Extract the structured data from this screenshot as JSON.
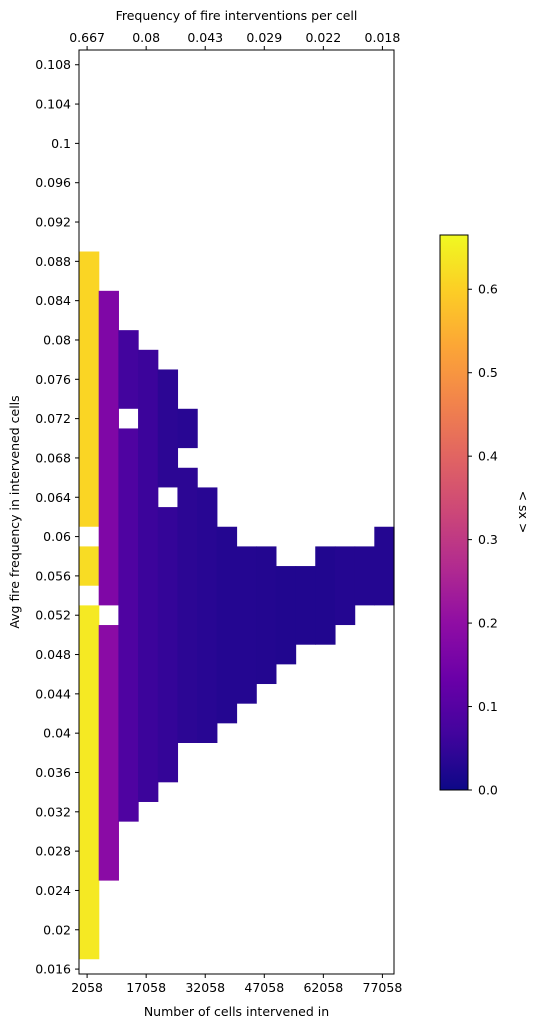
{
  "chart_data": {
    "type": "heatmap",
    "title": "",
    "xlabel": "Number of cells intervened in",
    "ylabel": "Avg fire frequency in intervened cells",
    "top_xlabel": "Frequency of fire interventions per cell",
    "x_ticks": [
      "2058",
      "17058",
      "32058",
      "47058",
      "62058",
      "77058"
    ],
    "x_tick_values": [
      2058,
      17058,
      32058,
      47058,
      62058,
      77058
    ],
    "top_ticks": [
      "0.667",
      "0.08",
      "0.043",
      "0.029",
      "0.022",
      "0.018"
    ],
    "y_ticks": [
      "0.016",
      "0.02",
      "0.024",
      "0.028",
      "0.032",
      "0.036",
      "0.04",
      "0.044",
      "0.048",
      "0.052",
      "0.056",
      "0.06",
      "0.064",
      "0.068",
      "0.072",
      "0.076",
      "0.08",
      "0.084",
      "0.088",
      "0.092",
      "0.096",
      "0.1",
      "0.104",
      "0.108"
    ],
    "xlim": [
      0,
      80000
    ],
    "ylim": [
      0.0155,
      0.1095
    ],
    "x_bins": [
      0,
      5000,
      10000,
      15000,
      20000,
      25000,
      30000,
      35000,
      40000,
      45000,
      50000,
      55000,
      60000,
      65000,
      70000,
      75000,
      80000
    ],
    "y_bins": [
      0.017,
      0.019,
      0.021,
      0.023,
      0.025,
      0.027,
      0.029,
      0.031,
      0.033,
      0.035,
      0.037,
      0.039,
      0.041,
      0.043,
      0.045,
      0.047,
      0.049,
      0.051,
      0.053,
      0.055,
      0.057,
      0.059,
      0.061,
      0.063,
      0.065,
      0.067,
      0.069,
      0.071,
      0.073,
      0.075,
      0.077,
      0.079,
      0.081,
      0.083,
      0.085,
      0.087,
      0.089
    ],
    "cells": [
      {
        "col": 0,
        "y0": 0.017,
        "y1": 0.053,
        "v": 0.64
      },
      {
        "col": 0,
        "y0": 0.055,
        "y1": 0.059,
        "v": 0.62
      },
      {
        "col": 0,
        "y0": 0.061,
        "y1": 0.089,
        "v": 0.61
      },
      {
        "col": 1,
        "y0": 0.025,
        "y1": 0.051,
        "v": 0.19
      },
      {
        "col": 1,
        "y0": 0.053,
        "y1": 0.085,
        "v": 0.17
      },
      {
        "col": 2,
        "y0": 0.031,
        "y1": 0.071,
        "v": 0.09
      },
      {
        "col": 2,
        "y0": 0.073,
        "y1": 0.081,
        "v": 0.07
      },
      {
        "col": 3,
        "y0": 0.033,
        "y1": 0.079,
        "v": 0.06
      },
      {
        "col": 4,
        "y0": 0.035,
        "y1": 0.063,
        "v": 0.05
      },
      {
        "col": 4,
        "y0": 0.065,
        "y1": 0.077,
        "v": 0.04
      },
      {
        "col": 5,
        "y0": 0.039,
        "y1": 0.067,
        "v": 0.04
      },
      {
        "col": 5,
        "y0": 0.069,
        "y1": 0.073,
        "v": 0.035
      },
      {
        "col": 6,
        "y0": 0.039,
        "y1": 0.065,
        "v": 0.035
      },
      {
        "col": 7,
        "y0": 0.041,
        "y1": 0.061,
        "v": 0.03
      },
      {
        "col": 8,
        "y0": 0.043,
        "y1": 0.059,
        "v": 0.03
      },
      {
        "col": 9,
        "y0": 0.045,
        "y1": 0.059,
        "v": 0.028
      },
      {
        "col": 10,
        "y0": 0.047,
        "y1": 0.057,
        "v": 0.025
      },
      {
        "col": 11,
        "y0": 0.049,
        "y1": 0.057,
        "v": 0.025
      },
      {
        "col": 12,
        "y0": 0.049,
        "y1": 0.059,
        "v": 0.025
      },
      {
        "col": 13,
        "y0": 0.051,
        "y1": 0.059,
        "v": 0.03
      },
      {
        "col": 14,
        "y0": 0.053,
        "y1": 0.059,
        "v": 0.03
      },
      {
        "col": 15,
        "y0": 0.053,
        "y1": 0.061,
        "v": 0.03
      }
    ],
    "colorbar": {
      "label": "< sx >",
      "colormap": "plasma",
      "range": [
        0,
        0.665
      ],
      "ticks": [
        "0.0",
        "0.1",
        "0.2",
        "0.3",
        "0.4",
        "0.5",
        "0.6"
      ],
      "tick_values": [
        0.0,
        0.1,
        0.2,
        0.3,
        0.4,
        0.5,
        0.6
      ]
    },
    "grid": false,
    "legend": "none"
  }
}
